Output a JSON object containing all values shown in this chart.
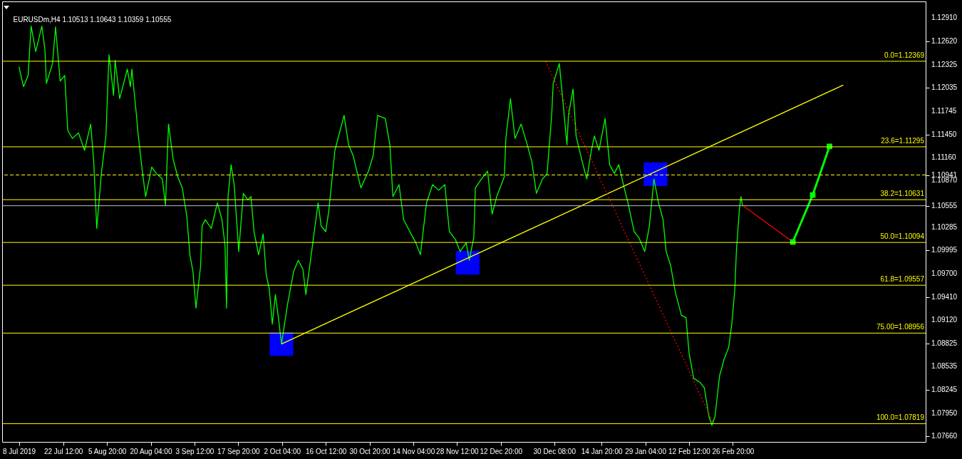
{
  "chart_data": {
    "type": "line",
    "title": "EURUSDm,H4  1.10513 1.10643 1.10359 1.10555",
    "xlim": [
      "2019-07-02T12:00",
      "2020-04-30T00:00"
    ],
    "ylim": [
      1.0759,
      1.1312
    ],
    "xticks": [
      {
        "value": "2019-07-08T00:00",
        "label": "8 Jul 2019"
      },
      {
        "value": "2019-07-22T12:00",
        "label": "22 Jul 12:00"
      },
      {
        "value": "2019-08-05T20:00",
        "label": "5 Aug 20:00"
      },
      {
        "value": "2019-08-20T04:00",
        "label": "20 Aug 04:00"
      },
      {
        "value": "2019-09-03T12:00",
        "label": "3 Sep 12:00"
      },
      {
        "value": "2019-09-17T20:00",
        "label": "17 Sep 20:00"
      },
      {
        "value": "2019-10-02T04:00",
        "label": "2 Oct 04:00"
      },
      {
        "value": "2019-10-16T12:00",
        "label": "16 Oct 12:00"
      },
      {
        "value": "2019-10-30T20:00",
        "label": "30 Oct 20:00"
      },
      {
        "value": "2019-11-14T04:00",
        "label": "14 Nov 04:00"
      },
      {
        "value": "2019-11-28T12:00",
        "label": "28 Nov 12:00"
      },
      {
        "value": "2019-12-12T20:00",
        "label": "12 Dec 20:00"
      },
      {
        "value": "2019-12-30T08:00",
        "label": "30 Dec 08:00"
      },
      {
        "value": "2020-01-14T20:00",
        "label": "14 Jan 20:00"
      },
      {
        "value": "2020-01-29T04:00",
        "label": "29 Jan 04:00"
      },
      {
        "value": "2020-02-12T12:00",
        "label": "12 Feb 12:00"
      },
      {
        "value": "2020-02-26T20:00",
        "label": "26 Feb 20:00"
      }
    ],
    "yticks": [
      {
        "value": 1.1291,
        "label": "1.12910"
      },
      {
        "value": 1.1262,
        "label": "1.12620"
      },
      {
        "value": 1.12325,
        "label": "1.12325"
      },
      {
        "value": 1.12035,
        "label": "1.12035"
      },
      {
        "value": 1.11745,
        "label": "1.11745"
      },
      {
        "value": 1.1145,
        "label": "1.11450"
      },
      {
        "value": 1.1116,
        "label": "1.11160"
      },
      {
        "value": 1.1087,
        "label": "1.10870"
      },
      {
        "value": 1.10285,
        "label": "1.10285"
      },
      {
        "value": 1.09995,
        "label": "1.09995"
      },
      {
        "value": 1.097,
        "label": "1.09700"
      },
      {
        "value": 1.0941,
        "label": "1.09410"
      },
      {
        "value": 1.0912,
        "label": "1.09120"
      },
      {
        "value": 1.08825,
        "label": "1.08825"
      },
      {
        "value": 1.08535,
        "label": "1.08535"
      },
      {
        "value": 1.08245,
        "label": "1.08245"
      },
      {
        "value": 1.0795,
        "label": "1.07950"
      },
      {
        "value": 1.0766,
        "label": "1.07660"
      },
      {
        "value": 1.10941,
        "label": "1.10941"
      },
      {
        "value": 1.10555,
        "label": "1.10555"
      }
    ],
    "ref_lines": [
      {
        "axis": "y",
        "value": 1.12369,
        "label": "0.0=1.12369",
        "color": "#ffff00"
      },
      {
        "axis": "y",
        "value": 1.11295,
        "label": "23.6=1.11295",
        "color": "#ffff00"
      },
      {
        "axis": "y",
        "value": 1.10631,
        "label": "38.2=1.10631",
        "color": "#ffff00"
      },
      {
        "axis": "y",
        "value": 1.10094,
        "label": "50.0=1.10094",
        "color": "#ffff00"
      },
      {
        "axis": "y",
        "value": 1.09557,
        "label": "61.8=1.09557",
        "color": "#ffff00"
      },
      {
        "axis": "y",
        "value": 1.08956,
        "label": "75.00=1.08956",
        "color": "#ffff00"
      },
      {
        "axis": "y",
        "value": 1.07819,
        "label": "100.0=1.07819",
        "color": "#ffff00"
      },
      {
        "axis": "y",
        "value": 1.10941,
        "color": "#ffff00",
        "line_style": "dashed"
      },
      {
        "axis": "y",
        "value": 1.10555,
        "color": "#c0c0c0"
      }
    ],
    "series": [
      {
        "type": "line",
        "color": "#00ff00",
        "x": [
          "2019-07-08",
          "2019-07-09T12:00",
          "2019-07-11",
          "2019-07-12",
          "2019-07-13T12:00",
          "2019-07-15T12:00",
          "2019-07-16T12:00",
          "2019-07-17",
          "2019-07-19",
          "2019-07-20",
          "2019-07-21T12:00",
          "2019-07-23",
          "2019-07-24",
          "2019-07-25T12:00",
          "2019-07-27T12:00",
          "2019-07-29T12:00",
          "2019-07-31T12:00",
          "2019-08-01T12:00",
          "2019-08-02T12:00",
          "2019-08-04",
          "2019-08-05T12:00",
          "2019-08-06T12:00",
          "2019-08-08",
          "2019-08-08T12:00",
          "2019-08-10",
          "2019-08-12T12:00",
          "2019-08-13T12:00",
          "2019-08-14",
          "2019-08-15T12:00",
          "2019-08-16",
          "2019-08-17T12:00",
          "2019-08-18T12:00",
          "2019-08-20T12:00",
          "2019-08-22",
          "2019-08-24",
          "2019-08-25",
          "2019-08-26",
          "2019-08-27T12:00",
          "2019-08-29",
          "2019-08-30T12:00",
          "2019-09-01",
          "2019-09-02",
          "2019-09-03",
          "2019-09-04",
          "2019-09-05T12:00",
          "2019-09-06",
          "2019-09-07",
          "2019-09-09",
          "2019-09-11",
          "2019-09-12T12:00",
          "2019-09-13T12:00",
          "2019-09-14",
          "2019-09-14T12:00",
          "2019-09-15T12:00",
          "2019-09-16T12:00",
          "2019-09-18",
          "2019-09-19T12:00",
          "2019-09-21",
          "2019-09-22",
          "2019-09-23",
          "2019-09-24T12:00",
          "2019-09-26",
          "2019-09-27",
          "2019-09-28",
          "2019-09-29",
          "2019-09-30",
          "2019-10-01",
          "2019-10-02",
          "2019-10-04",
          "2019-10-06",
          "2019-10-07T12:00",
          "2019-10-09",
          "2019-10-10",
          "2019-10-11T12:00",
          "2019-10-12T12:00",
          "2019-10-14",
          "2019-10-15",
          "2019-10-16T12:00",
          "2019-10-17T12:00",
          "2019-10-19T12:00",
          "2019-10-22T12:00",
          "2019-10-24",
          "2019-10-25T12:00",
          "2019-10-28",
          "2019-10-30T12:00",
          "2019-11-01",
          "2019-11-02T12:00",
          "2019-11-05",
          "2019-11-06T12:00",
          "2019-11-07T12:00",
          "2019-11-09T12:00",
          "2019-11-11",
          "2019-11-12T12:00",
          "2019-11-15",
          "2019-11-16T12:00",
          "2019-11-18T12:00",
          "2019-11-20T12:00",
          "2019-11-22T12:00",
          "2019-11-24T12:00",
          "2019-11-26",
          "2019-11-28",
          "2019-11-29T12:00",
          "2019-12-01T12:00",
          "2019-12-02T12:00",
          "2019-12-04",
          "2019-12-04T12:00",
          "2019-12-06T12:00",
          "2019-12-08T12:00",
          "2019-12-10",
          "2019-12-11T12:00",
          "2019-12-14",
          "2019-12-14T12:00",
          "2019-12-16",
          "2019-12-17T12:00",
          "2019-12-19T12:00",
          "2019-12-21T12:00",
          "2019-12-23",
          "2019-12-24T12:00",
          "2019-12-26T12:00",
          "2019-12-28",
          "2019-12-29T12:00",
          "2019-12-30",
          "2020-01-01",
          "2020-01-02",
          "2020-01-03T12:00",
          "2020-01-04",
          "2020-01-05T12:00",
          "2020-01-06T12:00",
          "2020-01-08T12:00",
          "2020-01-10",
          "2020-01-11T12:00",
          "2020-01-12T12:00",
          "2020-01-14",
          "2020-01-16",
          "2020-01-17T12:00",
          "2020-01-19",
          "2020-01-20T12:00",
          "2020-01-22",
          "2020-01-23T12:00",
          "2020-01-25T12:00",
          "2020-01-27",
          "2020-01-29",
          "2020-01-30T12:00",
          "2020-02-01",
          "2020-02-02T12:00",
          "2020-02-04",
          "2020-02-05",
          "2020-02-06T12:00",
          "2020-02-08",
          "2020-02-10",
          "2020-02-11T12:00",
          "2020-02-12T12:00",
          "2020-02-14",
          "2020-02-16",
          "2020-02-17T12:00",
          "2020-02-19",
          "2020-02-20",
          "2020-02-21",
          "2020-02-22T12:00",
          "2020-02-24",
          "2020-02-25T12:00",
          "2020-02-26T12:00",
          "2020-02-27T12:00",
          "2020-02-28",
          "2020-02-29",
          "2020-02-29T12:00",
          "2020-03-01"
        ],
        "values": [
          1.123,
          1.1205,
          1.1219,
          1.1281,
          1.1249,
          1.1281,
          1.1252,
          1.1209,
          1.1234,
          1.128,
          1.1212,
          1.1219,
          1.115,
          1.114,
          1.1147,
          1.1125,
          1.1158,
          1.1111,
          1.1027,
          1.1096,
          1.1143,
          1.1245,
          1.1194,
          1.1238,
          1.119,
          1.1227,
          1.1205,
          1.1227,
          1.1169,
          1.1147,
          1.1096,
          1.1067,
          1.1104,
          1.1096,
          1.1089,
          1.1056,
          1.1158,
          1.1114,
          1.1092,
          1.1078,
          1.1042,
          1.0994,
          1.0973,
          1.0927,
          1.098,
          1.103,
          1.1038,
          1.1027,
          1.1059,
          1.1038,
          1.1006,
          1.0927,
          1.1067,
          1.1107,
          1.1082,
          1.0998,
          1.1071,
          1.1063,
          1.1067,
          1.1023,
          1.0994,
          1.102,
          1.0969,
          1.0951,
          1.0907,
          1.0944,
          1.0915,
          1.0882,
          1.0932,
          1.0973,
          1.0987,
          1.0976,
          1.0944,
          1.0987,
          1.1016,
          1.1059,
          1.103,
          1.1023,
          1.1049,
          1.1125,
          1.1169,
          1.1132,
          1.1118,
          1.1078,
          1.1099,
          1.1118,
          1.1169,
          1.1165,
          1.1132,
          1.1067,
          1.1082,
          1.1038,
          1.1027,
          1.1009,
          1.0994,
          1.1059,
          1.1082,
          1.1075,
          1.1082,
          1.1023,
          1.1013,
          1.0998,
          1.1009,
          1.0987,
          1.1016,
          1.1078,
          1.1089,
          1.1099,
          1.1045,
          1.1067,
          1.1092,
          1.114,
          1.119,
          1.114,
          1.1158,
          1.1132,
          1.1111,
          1.1071,
          1.1089,
          1.1096,
          1.1169,
          1.1209,
          1.1234,
          1.1194,
          1.1132,
          1.1169,
          1.1202,
          1.1143,
          1.1111,
          1.1089,
          1.1125,
          1.1143,
          1.1125,
          1.1165,
          1.1107,
          1.1096,
          1.1107,
          1.1082,
          1.1059,
          1.1023,
          1.1016,
          1.0998,
          1.103,
          1.1089,
          1.1059,
          1.1038,
          1.0998,
          1.098,
          1.0947,
          1.0918,
          1.0915,
          1.0871,
          1.0839,
          1.0834,
          1.0827,
          1.0791,
          1.078,
          1.0791,
          1.0842,
          1.0863,
          1.0878,
          1.0907,
          1.0951,
          1.0998,
          1.1052,
          1.1067,
          1.1056
        ]
      },
      {
        "type": "line",
        "color": "#ffff00",
        "x": [
          "2019-10-02",
          "2020-04-03"
        ],
        "values": [
          1.0882,
          1.1207
        ]
      },
      {
        "type": "line",
        "color": "#ff0000",
        "line_style": "dotted",
        "x": [
          "2019-12-27T12:00",
          "2020-02-20T12:00"
        ],
        "values": [
          1.1237,
          1.0782
        ]
      },
      {
        "type": "line",
        "color": "#ff0000",
        "x": [
          "2020-03-01",
          "2020-03-17T12:00"
        ],
        "values": [
          1.1056,
          1.101
        ]
      },
      {
        "type": "line",
        "color": "#00ff00",
        "marker": "square",
        "x": [
          "2020-03-17T12:00",
          "2020-03-24",
          "2020-03-29T12:00"
        ],
        "values": [
          1.101,
          1.1069,
          1.113
        ]
      },
      {
        "type": "scatter",
        "color": "#0000ff",
        "marker": "square",
        "x": [
          "2019-10-02",
          "2019-12-02",
          "2020-02-01T12:00"
        ],
        "values": [
          1.0882,
          1.0984,
          1.1095
        ]
      }
    ]
  }
}
